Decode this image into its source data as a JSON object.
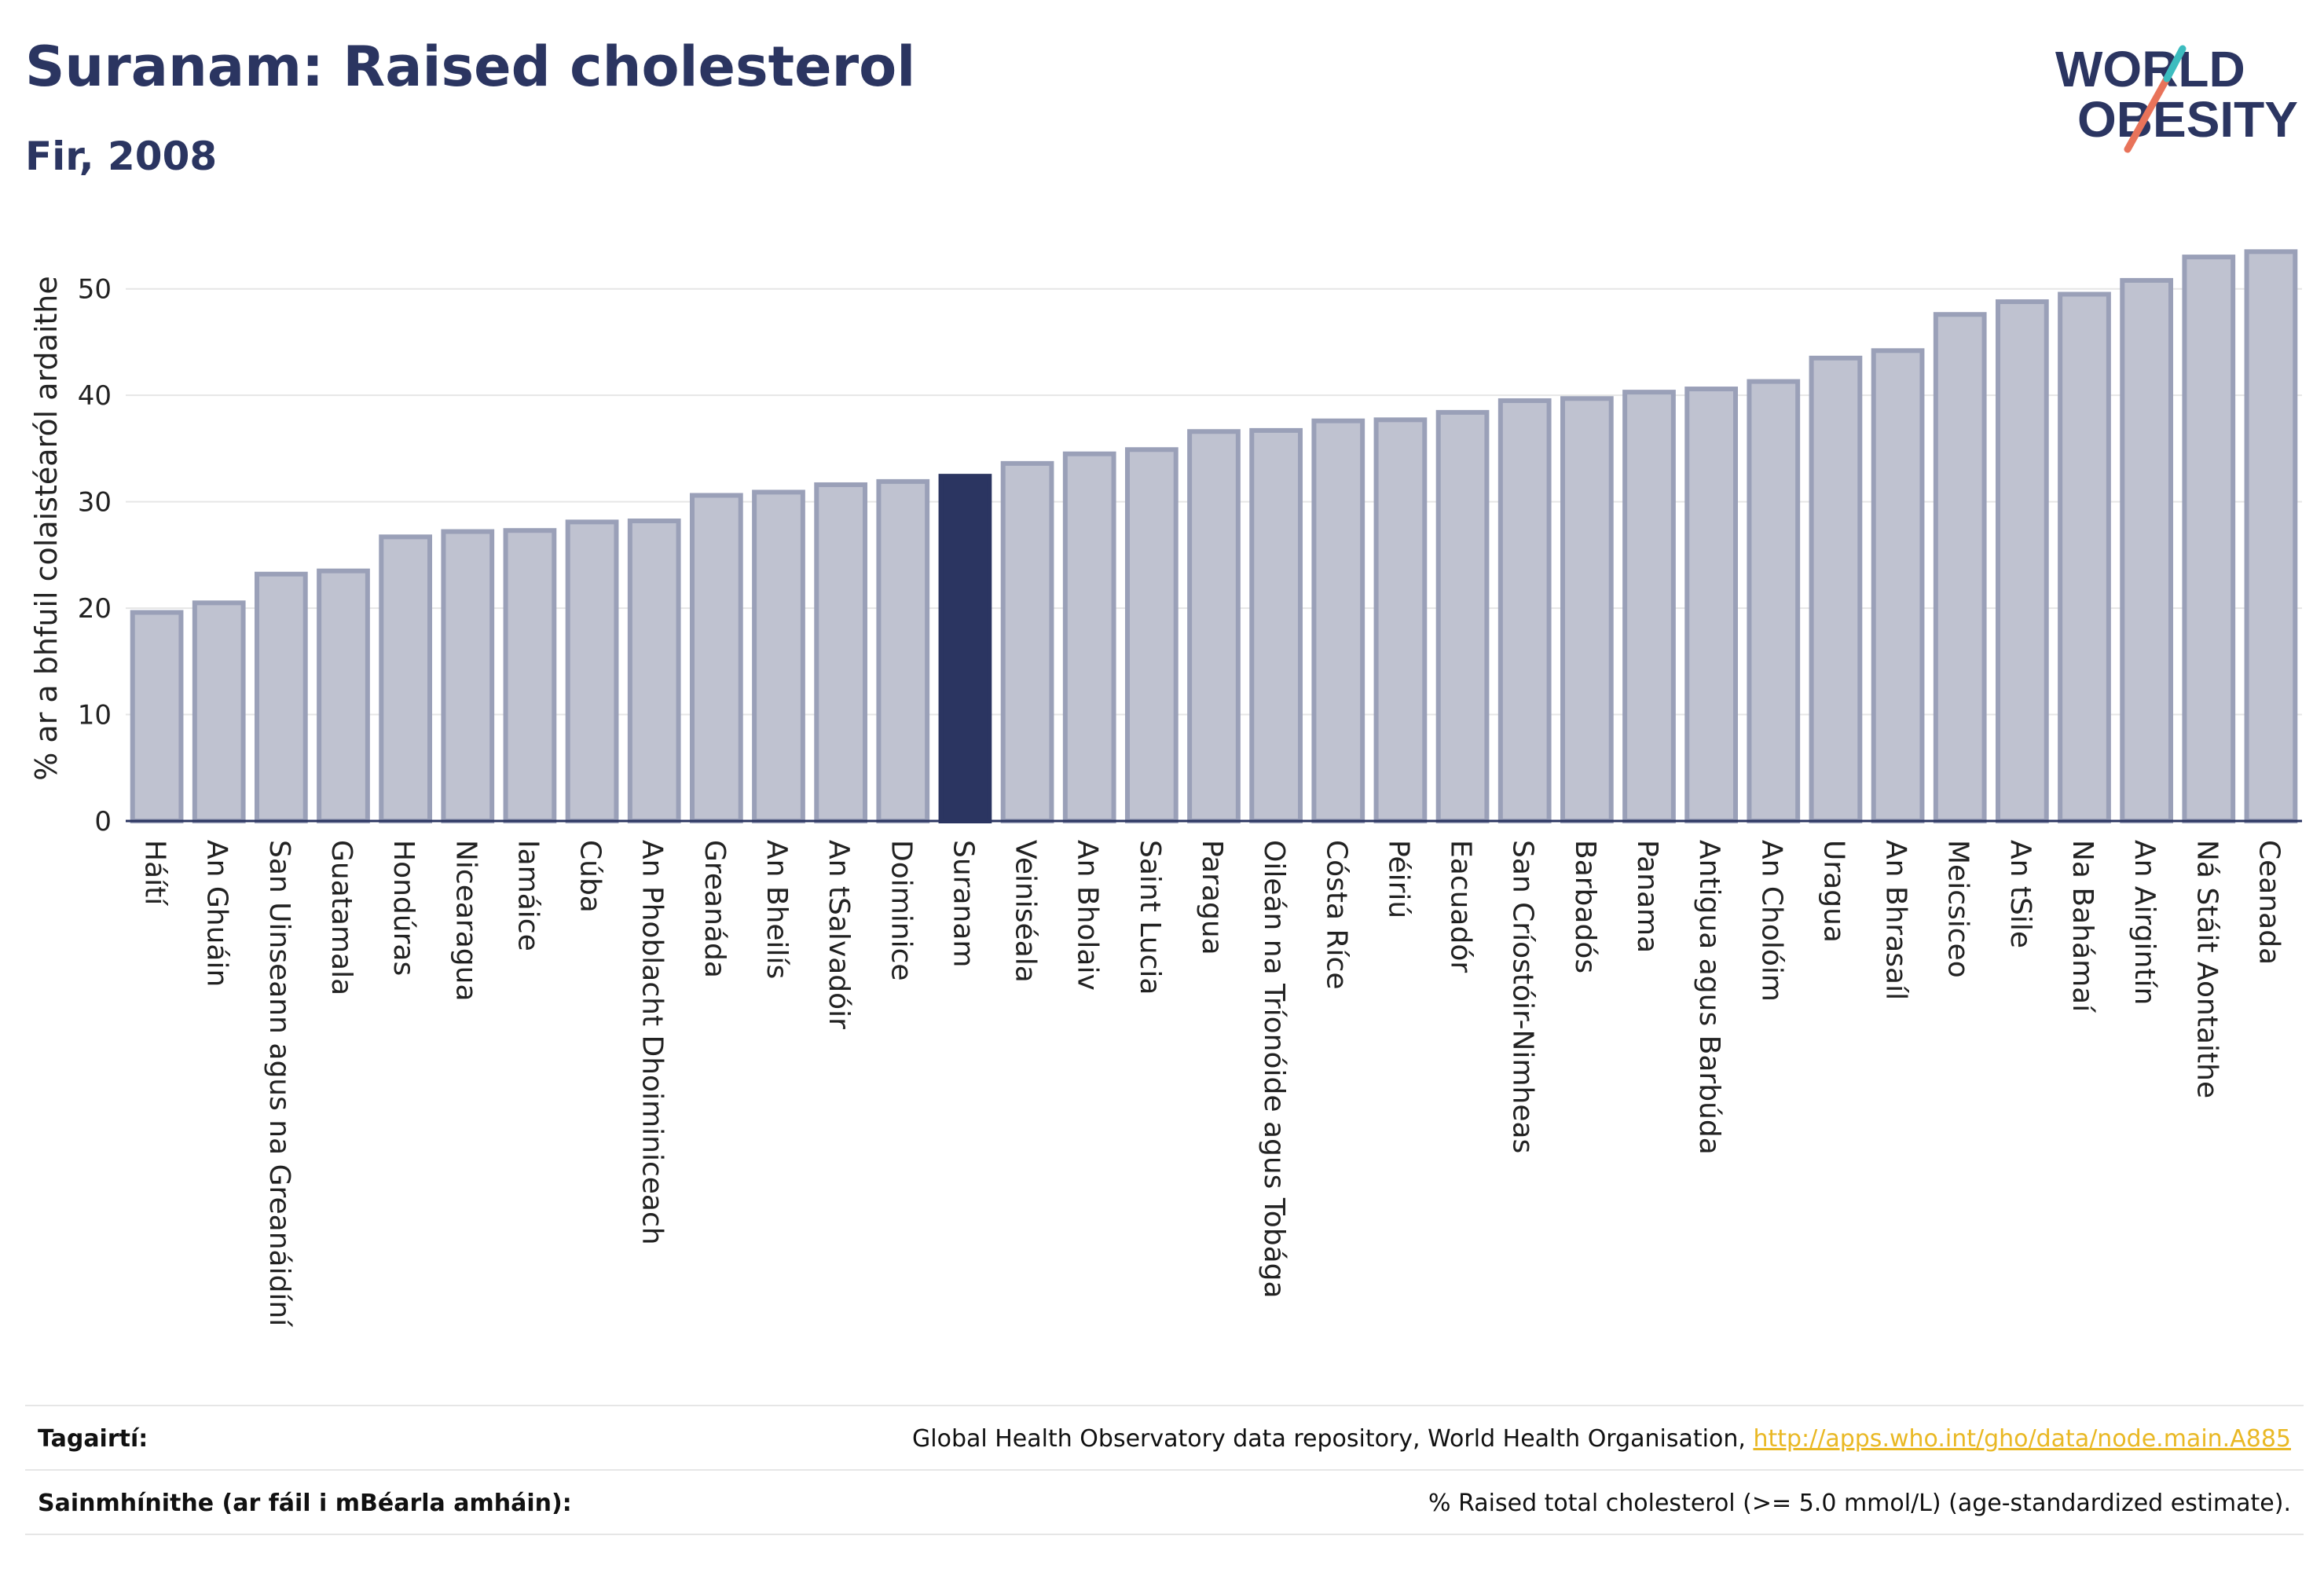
{
  "header": {
    "title": "Suranam: Raised cholesterol",
    "subtitle": "Fir, 2008"
  },
  "logo": {
    "line1": "WORLD",
    "line2": "OBESITY",
    "icon": "world-obesity-logo"
  },
  "colors": {
    "bar": "#bfc2d0",
    "bar_stroke": "#9aa0b8",
    "highlight": "#2b3561",
    "grid": "#e6e6e6",
    "text": "#2b3561"
  },
  "chart_data": {
    "type": "bar",
    "ylabel": "% ar a bhfuil colaistéaról ardaithe",
    "ylim": [
      0,
      55
    ],
    "yticks": [
      0,
      10,
      20,
      30,
      40,
      50
    ],
    "grid": true,
    "highlight": "Suranam",
    "categories": [
      "Háítí",
      "An Ghuáin",
      "San Uinseann agus na Greanáidíní",
      "Guatamala",
      "Hondúras",
      "Nicearagua",
      "Iamáice",
      "Cúba",
      "An Phoblacht Dhoiminiceach",
      "Greanáda",
      "An Bheilís",
      "An tSalvadóir",
      "Doiminice",
      "Suranam",
      "Veiniséala",
      "An Bholaiv",
      "Saint Lucia",
      "Paragua",
      "Oileán na Tríonóide agus Tobága",
      "Cósta Ríce",
      "Péiriú",
      "Eacuadór",
      "San Críostóir-Nimheas",
      "Barbadós",
      "Panama",
      "Antigua agus Barbúda",
      "An Cholóim",
      "Uragua",
      "An Bhrasaíl",
      "Meicsiceo",
      "An tSile",
      "Na Bahámaí",
      "An Airgintín",
      "Ná Stáit Aontaithe",
      "Ceanada"
    ],
    "values": [
      19.6,
      20.5,
      23.2,
      23.5,
      26.7,
      27.2,
      27.3,
      28.1,
      28.2,
      30.6,
      30.9,
      31.6,
      31.9,
      32.4,
      33.6,
      34.5,
      34.9,
      36.6,
      36.7,
      37.6,
      37.7,
      38.4,
      39.5,
      39.7,
      40.3,
      40.6,
      41.3,
      43.5,
      44.2,
      47.6,
      48.8,
      49.5,
      50.8,
      53.0,
      53.5
    ]
  },
  "footer": {
    "references_label": "Tagairtí:",
    "references_text": "Global Health Observatory data repository, World Health Organisation, ",
    "references_link": "http://apps.who.int/gho/data/node.main.A885",
    "definitions_label": "Sainmhínithe (ar fáil i mBéarla amháin):",
    "definitions_text": "% Raised total cholesterol (>= 5.0 mmol/L) (age-standardized estimate)."
  }
}
